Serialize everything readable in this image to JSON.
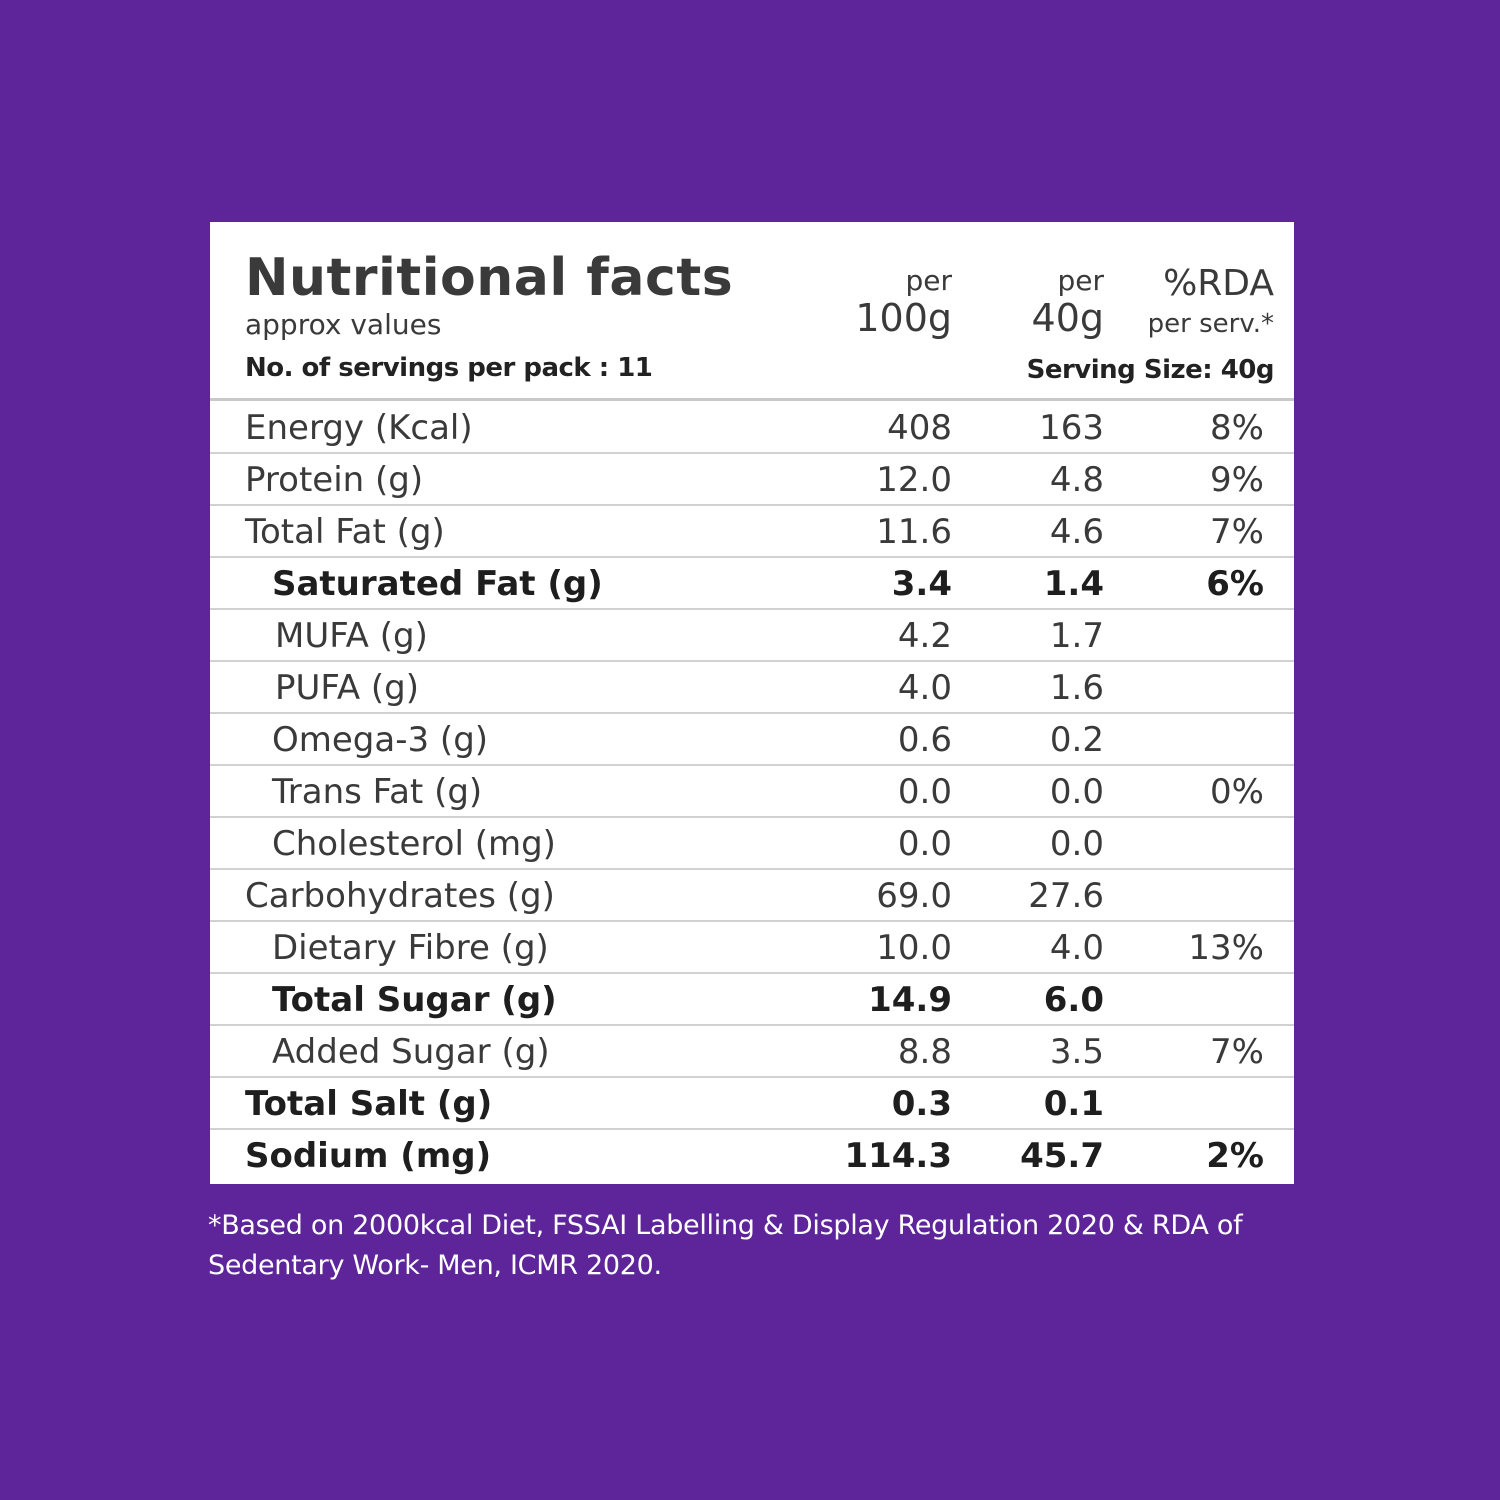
{
  "panel": {
    "title": "Nutritional facts",
    "subtitle": "approx values",
    "servings": "No. of servings per pack : 11",
    "col1_small": "per",
    "col1_big": "100g",
    "col2_small": "per",
    "col2_big": "40g",
    "col3_big": "%RDA",
    "col3_small": "per serv.*",
    "serving_size": "Serving Size: 40g"
  },
  "rows": [
    {
      "label": "Energy (Kcal)",
      "per100": "408",
      "per40": "163",
      "rda": "8%"
    },
    {
      "label": "Protein (g)",
      "per100": "12.0",
      "per40": "4.8",
      "rda": "9%"
    },
    {
      "label": "Total Fat (g)",
      "per100": "11.6",
      "per40": "4.6",
      "rda": "7%"
    },
    {
      "label": "Saturated Fat (g)",
      "per100": "3.4",
      "per40": "1.4",
      "rda": "6%"
    },
    {
      "label": "MUFA (g)",
      "per100": "4.2",
      "per40": "1.7",
      "rda": ""
    },
    {
      "label": "PUFA (g)",
      "per100": "4.0",
      "per40": "1.6",
      "rda": ""
    },
    {
      "label": "Omega-3 (g)",
      "per100": "0.6",
      "per40": "0.2",
      "rda": ""
    },
    {
      "label": "Trans Fat (g)",
      "per100": "0.0",
      "per40": "0.0",
      "rda": "0%"
    },
    {
      "label": "Cholesterol (mg)",
      "per100": "0.0",
      "per40": "0.0",
      "rda": ""
    },
    {
      "label": "Carbohydrates (g)",
      "per100": "69.0",
      "per40": "27.6",
      "rda": ""
    },
    {
      "label": "Dietary Fibre (g)",
      "per100": "10.0",
      "per40": "4.0",
      "rda": "13%"
    },
    {
      "label": "Total Sugar (g)",
      "per100": "14.9",
      "per40": "6.0",
      "rda": ""
    },
    {
      "label": "Added Sugar (g)",
      "per100": "8.8",
      "per40": "3.5",
      "rda": "7%"
    },
    {
      "label": "Total Salt (g)",
      "per100": "0.3",
      "per40": "0.1",
      "rda": ""
    },
    {
      "label": "Sodium (mg)",
      "per100": "114.3",
      "per40": "45.7",
      "rda": "2%"
    }
  ],
  "footnote": "*Based on 2000kcal Diet, FSSAI Labelling & Display Regulation 2020 & RDA of Sedentary Work- Men, ICMR 2020.",
  "colors": {
    "background": "#5e259b",
    "panel": "#ffffff",
    "text": "#3a3a3a"
  }
}
